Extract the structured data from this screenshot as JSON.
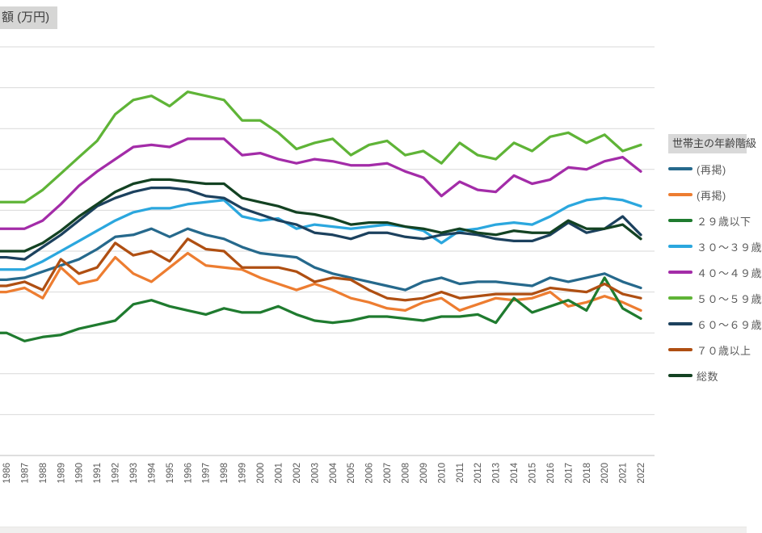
{
  "axis_title": "額 (万円)",
  "legend": {
    "title": "世帯主の年齢階級"
  },
  "chart_data": {
    "type": "line",
    "title": "",
    "unit": "万円",
    "x_categories": [
      "1986",
      "1987",
      "1988",
      "1989",
      "1990",
      "1991",
      "1992",
      "1993",
      "1994",
      "1995",
      "1996",
      "1997",
      "1998",
      "1999",
      "2000",
      "2001",
      "2002",
      "2003",
      "2004",
      "2005",
      "2006",
      "2007",
      "2008",
      "2009",
      "2010",
      "2011",
      "2012",
      "2013",
      "2014",
      "2015",
      "2016",
      "2017",
      "2018",
      "2020",
      "2021",
      "2022"
    ],
    "x_axis_note": "year 2019 absent from axis; 1986 label clipped at left edge",
    "y_axis": {
      "min": 0,
      "max": 1000,
      "interval": 100,
      "gridlines": true,
      "tick_labels_visible": false,
      "note": "y tick labels cropped out of frame; values estimated from gridline spacing"
    },
    "legend_position": "right",
    "series": [
      {
        "id": "rekei-1",
        "label": "(再掲)",
        "color": "#26698C",
        "values": [
          430,
          435,
          450,
          465,
          480,
          505,
          535,
          540,
          555,
          535,
          555,
          540,
          530,
          510,
          495,
          490,
          485,
          460,
          445,
          435,
          425,
          415,
          405,
          425,
          435,
          420,
          425,
          425,
          420,
          415,
          435,
          425,
          435,
          445,
          425,
          410
        ]
      },
      {
        "id": "rekei-2",
        "label": "(再掲)",
        "color": "#ED7D31",
        "values": [
          400,
          410,
          385,
          460,
          420,
          430,
          485,
          445,
          425,
          460,
          495,
          465,
          460,
          455,
          435,
          420,
          405,
          420,
          405,
          385,
          375,
          360,
          355,
          375,
          385,
          355,
          370,
          385,
          380,
          385,
          400,
          365,
          375,
          390,
          375,
          355
        ]
      },
      {
        "id": "under-29",
        "label": "２９歳以下",
        "color": "#1F7B2F",
        "values": [
          300,
          280,
          290,
          295,
          310,
          320,
          330,
          370,
          380,
          365,
          355,
          345,
          360,
          350,
          350,
          365,
          345,
          330,
          325,
          330,
          340,
          340,
          335,
          330,
          340,
          340,
          345,
          325,
          385,
          350,
          365,
          380,
          355,
          435,
          360,
          335
        ]
      },
      {
        "id": "age-30s",
        "label": "３０～３９歳",
        "color": "#2BA7DE",
        "values": [
          455,
          455,
          475,
          500,
          525,
          550,
          575,
          595,
          605,
          605,
          615,
          620,
          625,
          585,
          575,
          580,
          555,
          565,
          560,
          555,
          560,
          565,
          560,
          550,
          520,
          550,
          555,
          565,
          570,
          565,
          585,
          610,
          625,
          630,
          625,
          610
        ]
      },
      {
        "id": "age-40s",
        "label": "４０～４９歳",
        "color": "#A32CA8",
        "values": [
          555,
          555,
          575,
          615,
          660,
          695,
          725,
          755,
          760,
          755,
          775,
          775,
          775,
          735,
          740,
          725,
          715,
          725,
          720,
          710,
          710,
          715,
          695,
          680,
          635,
          670,
          650,
          645,
          685,
          665,
          675,
          705,
          700,
          720,
          730,
          695
        ]
      },
      {
        "id": "age-50s",
        "label": "５０～５９歳",
        "color": "#5FB437",
        "values": [
          620,
          620,
          650,
          690,
          730,
          770,
          835,
          870,
          880,
          855,
          890,
          880,
          870,
          820,
          820,
          790,
          750,
          765,
          775,
          735,
          760,
          770,
          735,
          745,
          715,
          765,
          735,
          725,
          765,
          745,
          780,
          790,
          765,
          785,
          745,
          760
        ]
      },
      {
        "id": "age-60s",
        "label": "６０～６９歳",
        "color": "#1C415E",
        "values": [
          485,
          480,
          510,
          540,
          575,
          610,
          630,
          645,
          655,
          655,
          650,
          635,
          630,
          605,
          590,
          575,
          565,
          545,
          540,
          530,
          545,
          545,
          535,
          530,
          540,
          545,
          540,
          530,
          525,
          525,
          540,
          570,
          545,
          555,
          585,
          540
        ]
      },
      {
        "id": "over-70",
        "label": "７０歳以上",
        "color": "#AF4F12",
        "values": [
          415,
          425,
          405,
          480,
          445,
          460,
          520,
          490,
          500,
          475,
          530,
          505,
          500,
          460,
          460,
          460,
          450,
          425,
          435,
          430,
          405,
          385,
          380,
          385,
          400,
          385,
          390,
          395,
          395,
          395,
          410,
          405,
          400,
          420,
          395,
          385
        ]
      },
      {
        "id": "total",
        "label": "総数",
        "color": "#134222",
        "values": [
          500,
          500,
          520,
          550,
          585,
          615,
          645,
          665,
          675,
          675,
          670,
          665,
          665,
          630,
          620,
          610,
          595,
          590,
          580,
          565,
          570,
          570,
          560,
          555,
          545,
          555,
          545,
          540,
          550,
          545,
          545,
          575,
          555,
          555,
          565,
          530
        ]
      }
    ],
    "style": {
      "gridline_color": "#D9D9D9",
      "axis_line_color": "#CBC9C9",
      "tick_label_color": "#595959"
    }
  }
}
